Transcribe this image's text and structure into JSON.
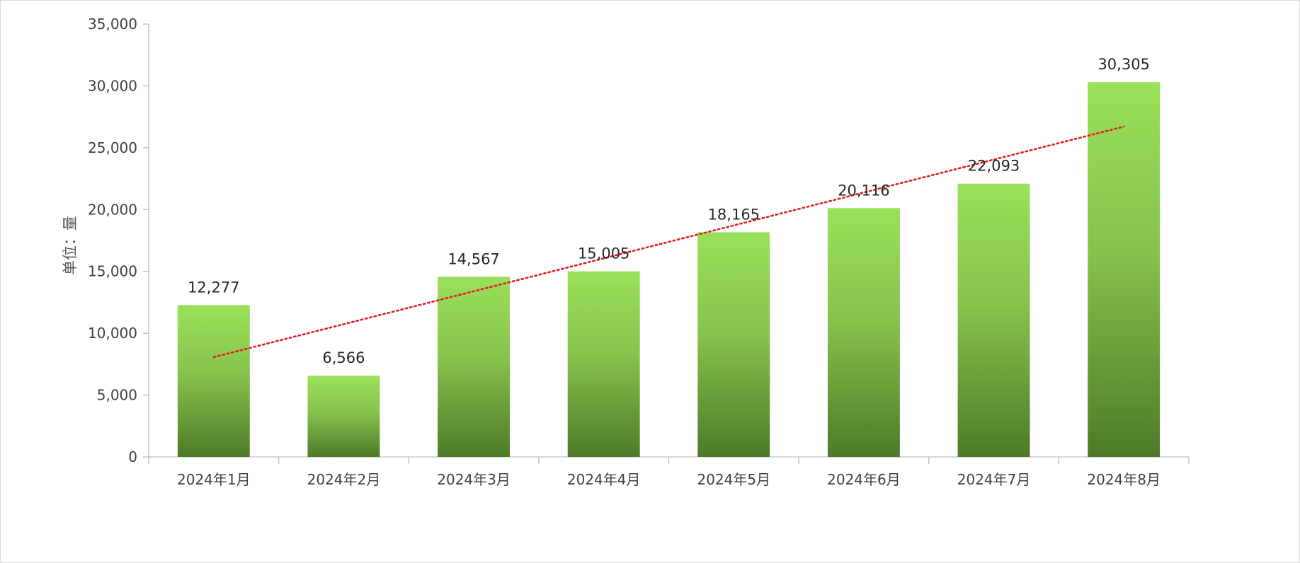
{
  "chart_data": {
    "type": "bar",
    "title": "",
    "xlabel": "",
    "ylabel": "单位：量",
    "categories": [
      "2024年1月",
      "2024年2月",
      "2024年3月",
      "2024年4月",
      "2024年5月",
      "2024年6月",
      "2024年7月",
      "2024年8月"
    ],
    "series": [
      {
        "values": [
          12277,
          6566,
          14567,
          15005,
          18165,
          20116,
          22093,
          30305
        ]
      }
    ],
    "data_labels": [
      "12,277",
      "6,566",
      "14,567",
      "15,005",
      "18,165",
      "20,116",
      "22,093",
      "30,305"
    ],
    "ylim": [
      0,
      35000
    ],
    "yticks": [
      0,
      5000,
      10000,
      15000,
      20000,
      25000,
      30000,
      35000
    ],
    "ytick_labels": [
      "0",
      "5,000",
      "10,000",
      "15,000",
      "20,000",
      "25,000",
      "30,000",
      "35,000"
    ],
    "grid": false,
    "legend": "none",
    "trendline": {
      "type": "linear",
      "style": "dotted",
      "color": "#e02020"
    },
    "colors": {
      "bar_top": "#9be05a",
      "bar_bottom": "#4e7a28",
      "axis": "#bfbfbf"
    }
  }
}
